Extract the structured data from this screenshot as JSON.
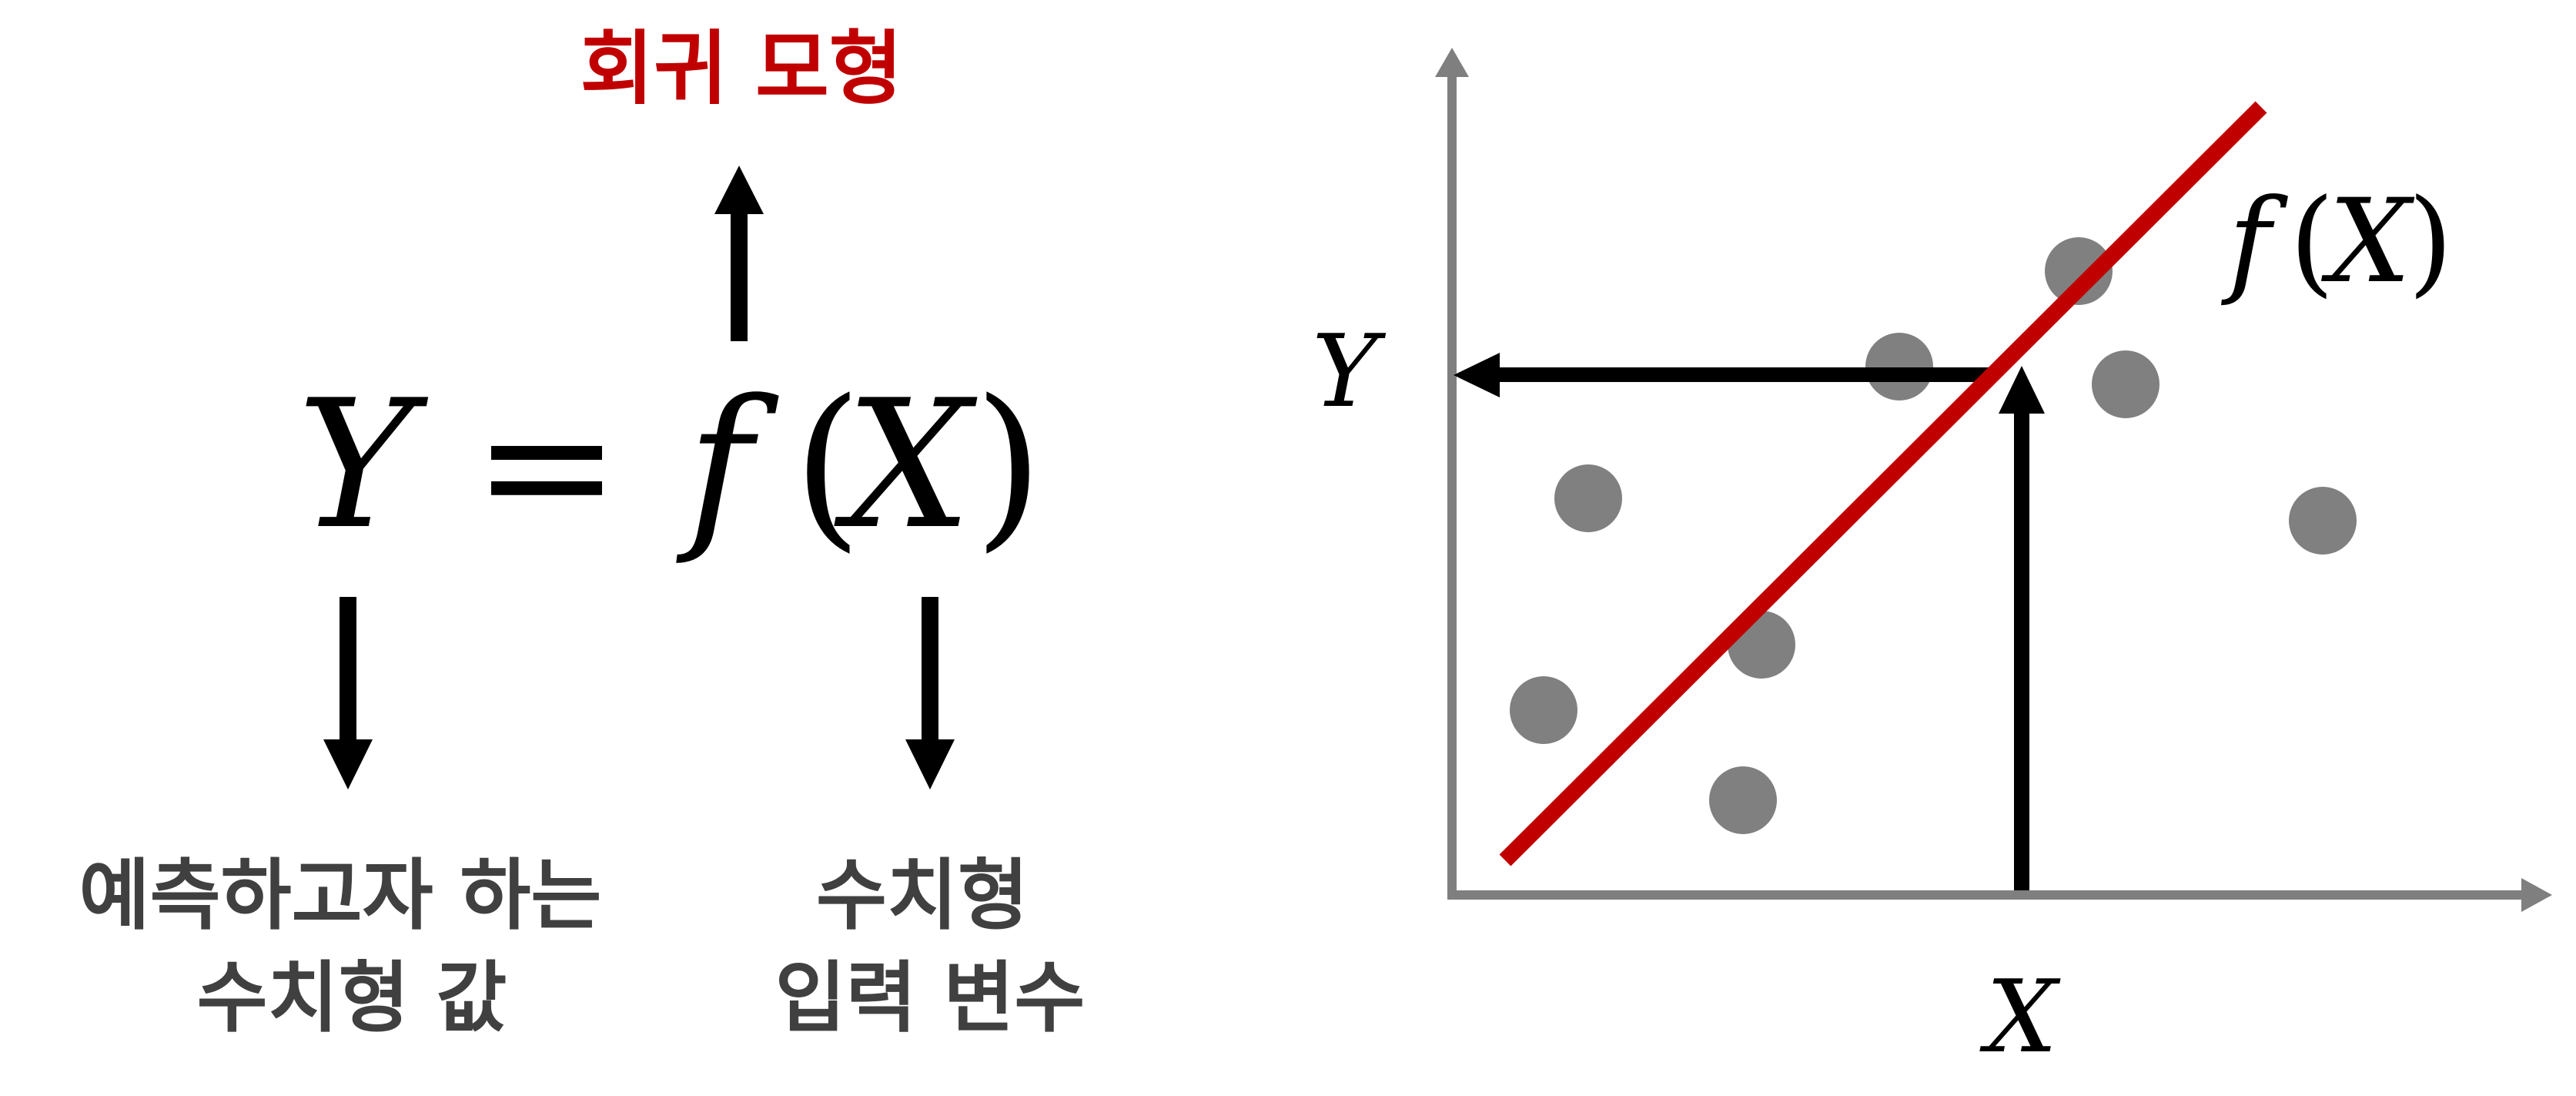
{
  "left_panel": {
    "model_label": "회귀 모형",
    "equation": {
      "y": "Y",
      "eq": "=",
      "f": "f",
      "open": "(",
      "x": "X",
      "close": ")"
    },
    "target_label_line1": "예측하고자 하는",
    "target_label_line2": "수치형 값",
    "input_label_line1": "수치형",
    "input_label_line2": "입력 변수"
  },
  "right_panel": {
    "y_axis_label": "Y",
    "x_axis_label": "X",
    "line_label": {
      "f": "f",
      "open": "(",
      "x": "X",
      "close": ")"
    }
  },
  "colors": {
    "accent_red": "#c00000",
    "label_gray": "#404040",
    "axis_gray": "#7f7f7f",
    "point_gray": "#808080",
    "ink": "#000000"
  }
}
